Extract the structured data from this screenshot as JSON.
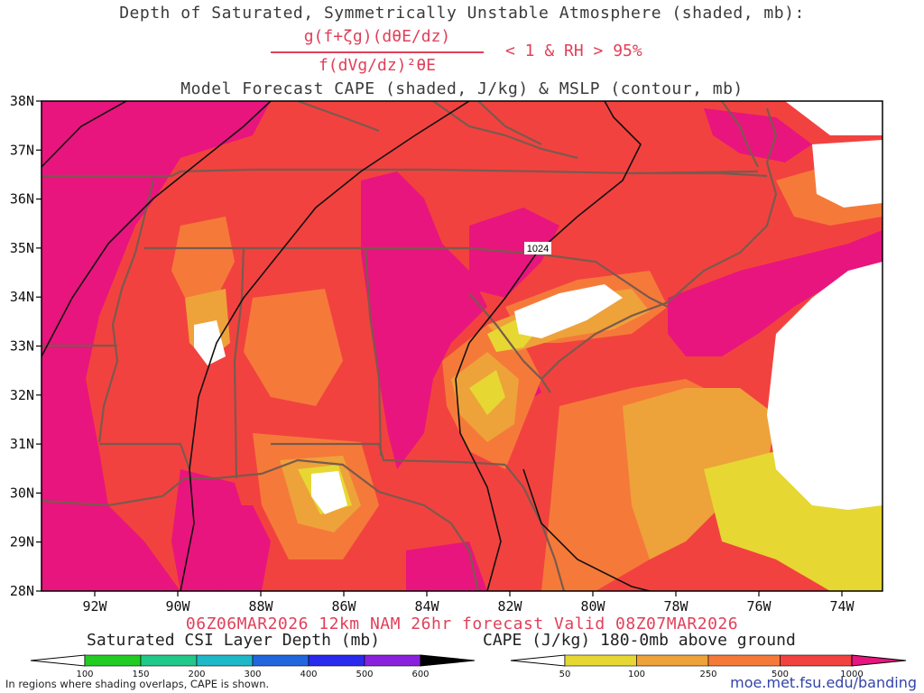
{
  "title": {
    "line1": "Depth of Saturated, Symmetrically Unstable Atmosphere (shaded, mb):",
    "fraction_numerator": "g(f+ζg)(dθE/dz)",
    "fraction_denominator": "f(dVg/dz)²θE",
    "condition": "< 1 & RH > 95%",
    "line3": "Model Forecast CAPE (shaded, J/kg) & MSLP (contour, mb)"
  },
  "map": {
    "lat_labels": [
      "38N",
      "37N",
      "36N",
      "35N",
      "34N",
      "33N",
      "32N",
      "31N",
      "30N",
      "29N",
      "28N"
    ],
    "lon_labels": [
      "92W",
      "90W",
      "88W",
      "86W",
      "84W",
      "82W",
      "80W",
      "78W",
      "76W",
      "74W"
    ],
    "isobar_label": "1024",
    "colors": {
      "cape_1000plus": "#e8157e",
      "cape_500_1000": "#f2423f",
      "cape_250_500": "#f57a3a",
      "cape_100_250": "#eea23a",
      "cape_50_100": "#e6d733",
      "background": "#ffffff",
      "borders": "#7a5a4e",
      "isobar": "#111111"
    }
  },
  "valid_line": "06Z06MAR2026 12km NAM 26hr forecast Valid 08Z07MAR2026",
  "csi_colorbar": {
    "title": "Saturated CSI Layer Depth (mb)",
    "labels": [
      "100",
      "150",
      "200",
      "300",
      "400",
      "500",
      "600"
    ],
    "colors": [
      "#ffffff",
      "#22cc22",
      "#22c78a",
      "#1fb8c8",
      "#2266dd",
      "#2a2aee",
      "#8a22dd",
      "#000000"
    ]
  },
  "cape_colorbar": {
    "title": "CAPE (J/kg) 180-0mb above ground",
    "labels": [
      "50",
      "100",
      "250",
      "500",
      "1000"
    ],
    "colors": [
      "#ffffff",
      "#e6d733",
      "#eea23a",
      "#f57a3a",
      "#f2423f",
      "#e8157e"
    ]
  },
  "footnote": "In regions where shading overlaps, CAPE is shown.",
  "url": "moe.met.fsu.edu/banding"
}
